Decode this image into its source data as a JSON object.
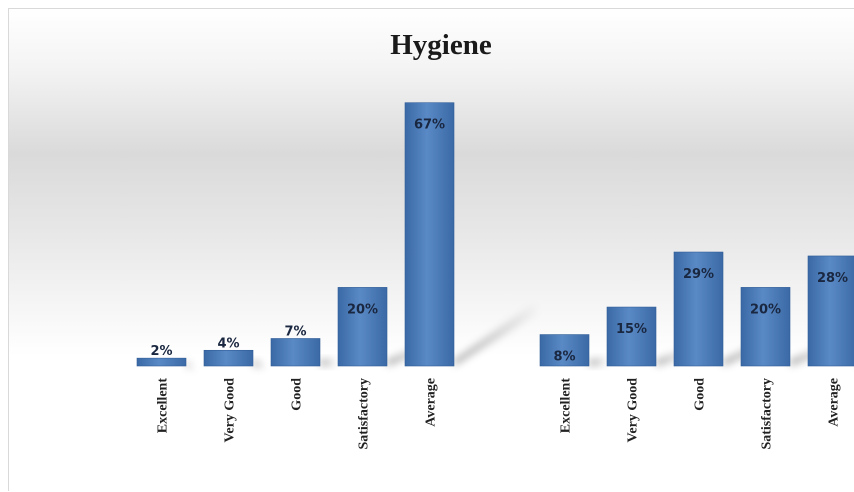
{
  "chart_data": {
    "type": "bar",
    "title": "Hygiene",
    "ylim": [
      0,
      70
    ],
    "grid": false,
    "legend": "none",
    "groups": [
      {
        "categories": [
          "Excellent",
          "Very Good",
          "Good",
          "Satisfactory",
          "Average"
        ],
        "values": [
          2,
          4,
          7,
          20,
          67
        ],
        "labels": [
          "2%",
          "4%",
          "7%",
          "20%",
          "67%"
        ]
      },
      {
        "categories": [
          "Excellent",
          "Very Good",
          "Good",
          "Satisfactory",
          "Average"
        ],
        "values": [
          8,
          15,
          29,
          20,
          28
        ],
        "labels": [
          "8%",
          "15%",
          "29%",
          "20%",
          "28%"
        ]
      }
    ],
    "colors": {
      "bar": "#4a7ab8",
      "bar_light": "#6d97cf",
      "bar_dark": "#2f5d97"
    }
  }
}
